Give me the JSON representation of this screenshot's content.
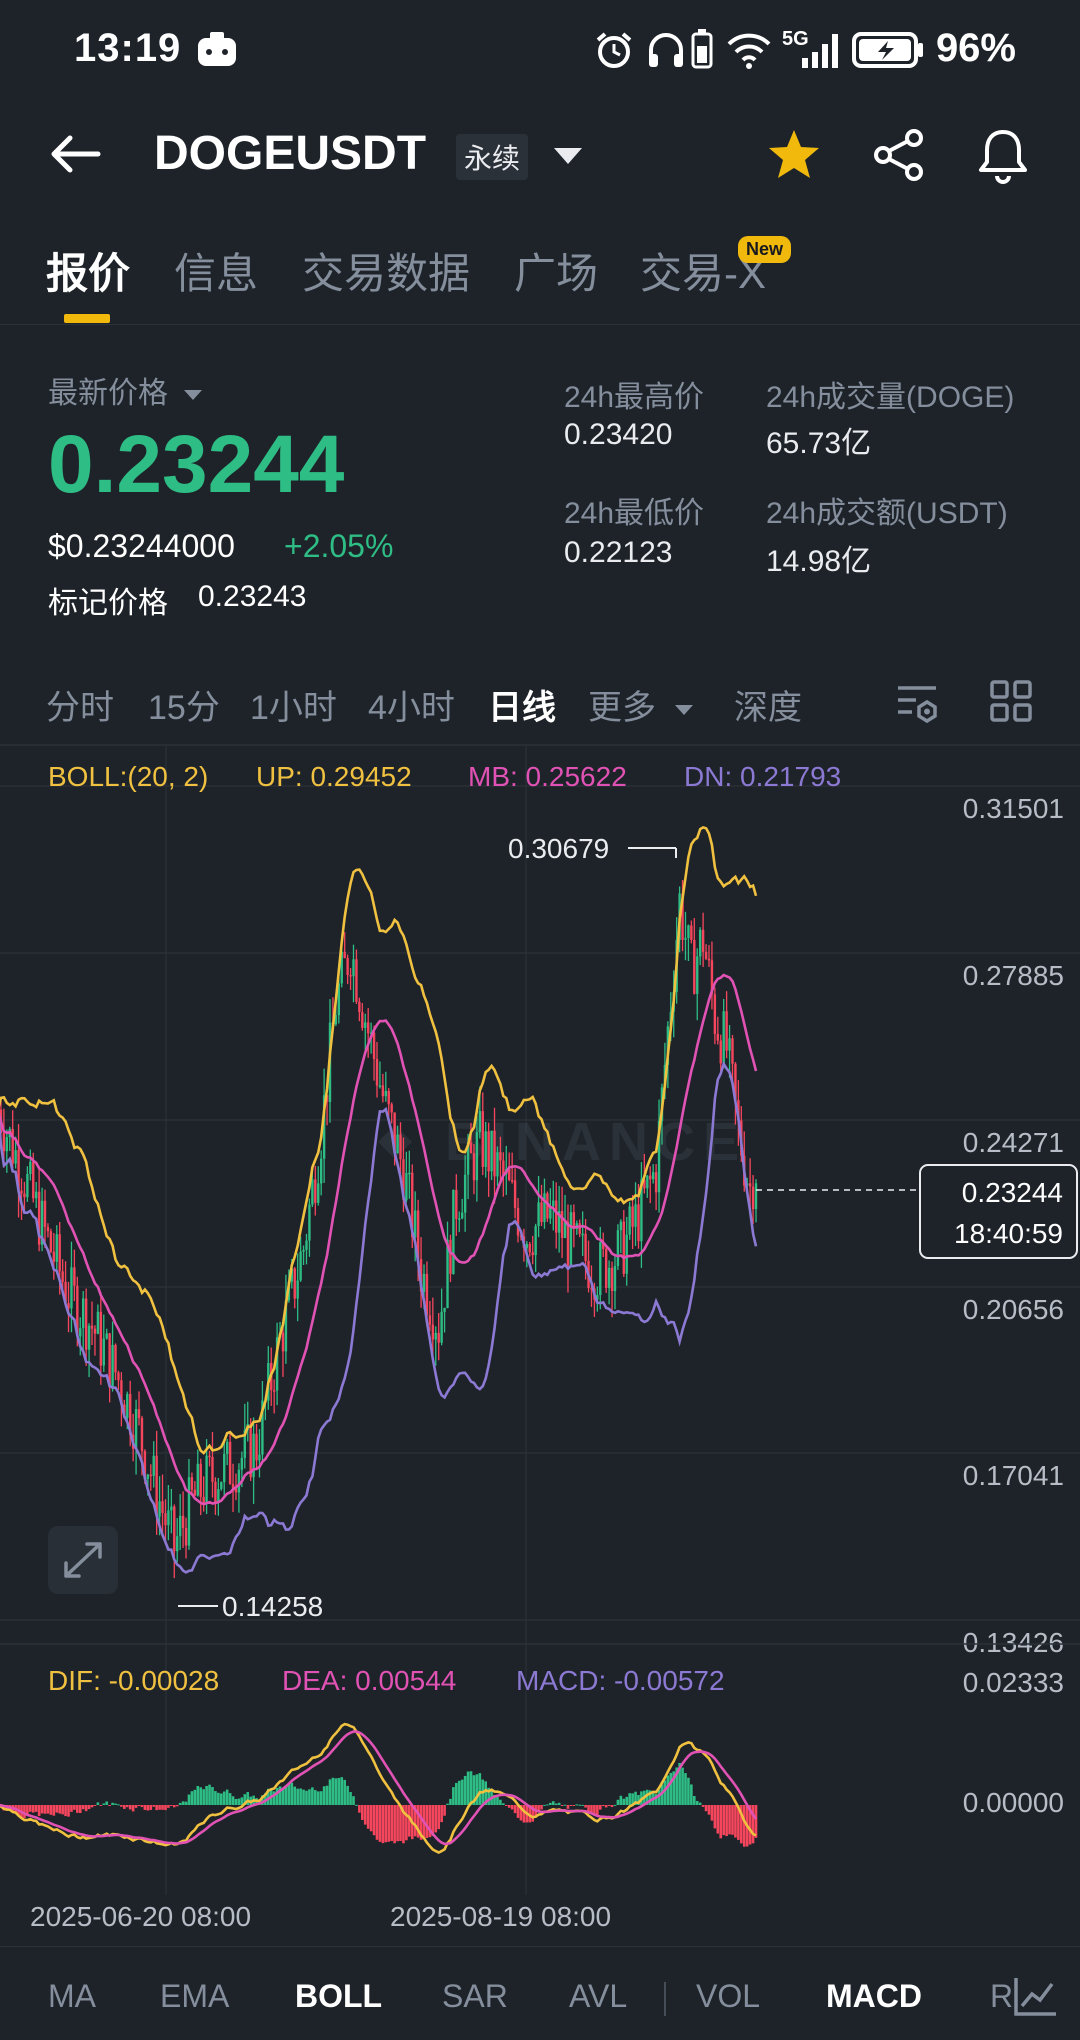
{
  "status": {
    "time": "13:19",
    "battery": "96%",
    "network": "5G"
  },
  "header": {
    "symbol": "DOGEUSDT",
    "contract_type": "永续"
  },
  "tabs": [
    {
      "label": "报价",
      "active": true
    },
    {
      "label": "信息",
      "active": false
    },
    {
      "label": "交易数据",
      "active": false
    },
    {
      "label": "广场",
      "active": false
    },
    {
      "label": "交易-X",
      "active": false,
      "badge": "New"
    }
  ],
  "price": {
    "label": "最新价格",
    "last": "0.23244",
    "usd": "$0.23244000",
    "change": "+2.05%",
    "mark_label": "标记价格",
    "mark": "0.23243"
  },
  "stats": {
    "high_label": "24h最高价",
    "high": "0.23420",
    "low_label": "24h最低价",
    "low": "0.22123",
    "vol_label": "24h成交量(DOGE)",
    "vol": "65.73亿",
    "amount_label": "24h成交额(USDT)",
    "amount": "14.98亿"
  },
  "intervals": [
    {
      "label": "分时",
      "active": false
    },
    {
      "label": "15分",
      "active": false
    },
    {
      "label": "1小时",
      "active": false
    },
    {
      "label": "4小时",
      "active": false
    },
    {
      "label": "日线",
      "active": true
    },
    {
      "label": "更多",
      "active": false
    },
    {
      "label": "深度",
      "active": false
    }
  ],
  "chart": {
    "boll_label": "BOLL:(20, 2)",
    "boll_up": "UP: 0.29452",
    "boll_mb": "MB: 0.25622",
    "boll_dn": "DN: 0.21793",
    "price_ticks": [
      "0.31501",
      "0.27885",
      "0.24271",
      "0.20656",
      "0.17041",
      "0.13426"
    ],
    "high_marker": "0.30679",
    "low_marker": "0.14258",
    "current_price": "0.23244",
    "countdown": "18:40:59",
    "watermark": "BINANCE",
    "macd_dif": "DIF: -0.00028",
    "macd_dea": "DEA: 0.00544",
    "macd_val": "MACD: -0.00572",
    "macd_ticks": [
      "0.02333",
      "0.00000"
    ],
    "dates": [
      "2025-06-20 08:00",
      "2025-08-19 08:00"
    ],
    "colors": {
      "up": "#2ebd85",
      "down": "#f6465d",
      "boll_up": "#f0c140",
      "boll_mb": "#e052b4",
      "boll_dn": "#8c79d4"
    }
  },
  "indicators": [
    {
      "label": "MA",
      "active": false
    },
    {
      "label": "EMA",
      "active": false
    },
    {
      "label": "BOLL",
      "active": true
    },
    {
      "label": "SAR",
      "active": false
    },
    {
      "label": "AVL",
      "active": false
    },
    {
      "label": "VOL",
      "active": false
    },
    {
      "label": "MACD",
      "active": true
    },
    {
      "label": "R",
      "active": false
    }
  ]
}
